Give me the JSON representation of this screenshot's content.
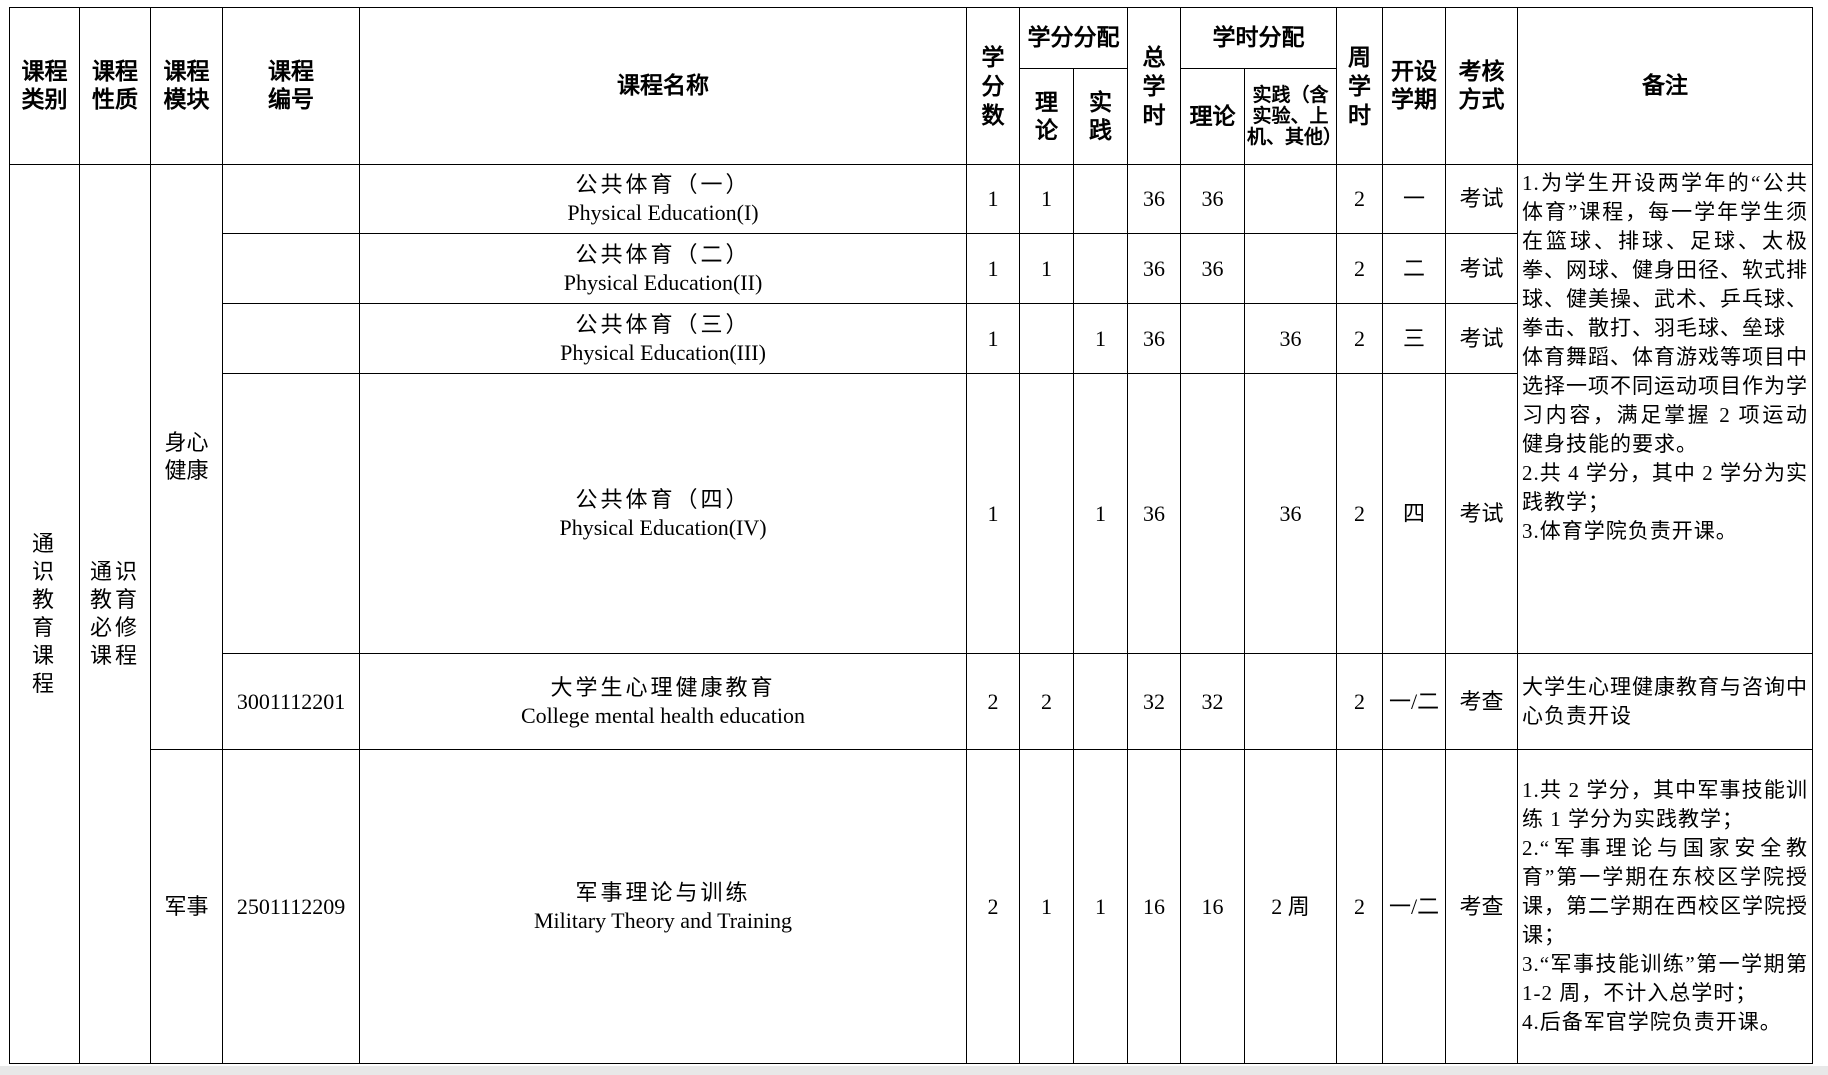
{
  "header": {
    "category": "课程类别",
    "nature": "课程性质",
    "module": "课程模块",
    "code": "课程编号",
    "name": "课程名称",
    "credits": "学分数",
    "credit_split": "学分分配",
    "credit_theory": "理论",
    "credit_practice": "实践",
    "total_hours": "总学时",
    "hour_split": "学时分配",
    "hour_theory": "理论",
    "hour_practice": "实践（含实验、上机、其他）",
    "weekly_hours": "周学时",
    "semester": "开设学期",
    "assessment": "考核方式",
    "remarks": "备注"
  },
  "groups": {
    "category": "通识教育课程",
    "nature": "通识教育必修课程",
    "module1": "身心健康",
    "module2": "军事"
  },
  "rows": [
    {
      "code": "",
      "name_cn": "公共体育（一）",
      "name_en": "Physical Education(I)",
      "credits": "1",
      "ct": "1",
      "cp": "",
      "total": "36",
      "ht": "36",
      "hp": "",
      "weekly": "2",
      "semester": "一",
      "assess": "考试"
    },
    {
      "code": "",
      "name_cn": "公共体育（二）",
      "name_en": "Physical Education(II)",
      "credits": "1",
      "ct": "1",
      "cp": "",
      "total": "36",
      "ht": "36",
      "hp": "",
      "weekly": "2",
      "semester": "二",
      "assess": "考试"
    },
    {
      "code": "",
      "name_cn": "公共体育（三）",
      "name_en": "Physical Education(III)",
      "credits": "1",
      "ct": "",
      "cp": "1",
      "total": "36",
      "ht": "",
      "hp": "36",
      "weekly": "2",
      "semester": "三",
      "assess": "考试"
    },
    {
      "code": "",
      "name_cn": "公共体育（四）",
      "name_en": "Physical Education(IV)",
      "credits": "1",
      "ct": "",
      "cp": "1",
      "total": "36",
      "ht": "",
      "hp": "36",
      "weekly": "2",
      "semester": "四",
      "assess": "考试"
    },
    {
      "code": "3001112201",
      "name_cn": "大学生心理健康教育",
      "name_en": "College mental health education",
      "credits": "2",
      "ct": "2",
      "cp": "",
      "total": "32",
      "ht": "32",
      "hp": "",
      "weekly": "2",
      "semester": "一/二",
      "assess": "考查"
    },
    {
      "code": "2501112209",
      "name_cn": "军事理论与训练",
      "name_en": "Military Theory and Training",
      "credits": "2",
      "ct": "1",
      "cp": "1",
      "total": "16",
      "ht": "16",
      "hp": "2 周",
      "weekly": "2",
      "semester": "一/二",
      "assess": "考查"
    }
  ],
  "remarks": {
    "pe": [
      "1.为学生开设两学年的“公共体育”课程，每一学年学生须在篮球、排球、足球、太极拳、网球、健身田径、软式排球、健美操、武术、乒乓球、拳击、散打、羽毛球、垒球",
      "体育舞蹈、体育游戏等项目中选择一项不同运动项目作为学习内容，满足掌握 2 项运动健身技能的要求。",
      "2.共 4 学分，其中 2 学分为实践教学；",
      "3.体育学院负责开课。"
    ],
    "psych": "大学生心理健康教育与咨询中心负责开设",
    "military": [
      "1.共 2 学分，其中军事技能训练 1 学分为实践教学；",
      "2.“军事理论与国家安全教育”第一学期在东校区学院授课，第二学期在西校区学院授课；",
      "3.“军事技能训练”第一学期第 1-2 周，不计入总学时；",
      "4.后备军官学院负责开课。"
    ]
  }
}
